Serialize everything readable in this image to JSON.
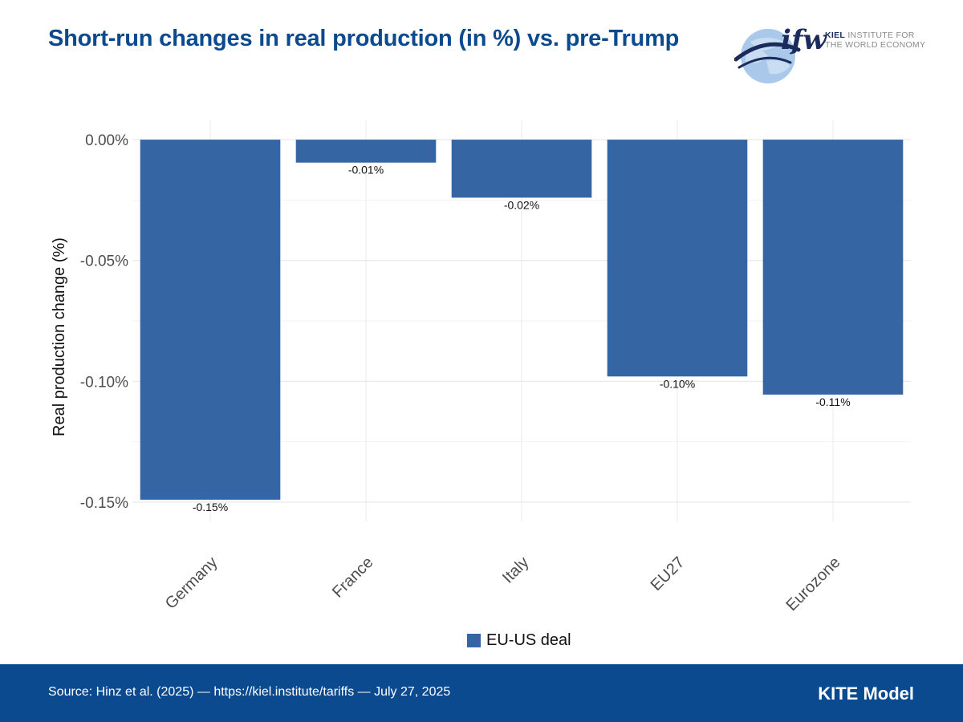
{
  "header": {
    "title": "Short-run changes in real production (in %) vs. pre-Trump"
  },
  "logo": {
    "mark": "ifw",
    "institute_line1": "KIEL",
    "institute_line1_rest": "INSTITUTE FOR",
    "institute_line2": "THE WORLD ECONOMY",
    "icon": "globe-icon"
  },
  "chart_data": {
    "type": "bar",
    "title": "Short-run changes in real production (in %) vs. pre-Trump",
    "categories": [
      "Germany",
      "France",
      "Italy",
      "EU27",
      "Eurozone"
    ],
    "series": [
      {
        "name": "EU-US deal",
        "values": [
          -0.149,
          -0.0095,
          -0.024,
          -0.098,
          -0.1055
        ],
        "labels": [
          "-0.15%",
          "-0.01%",
          "-0.02%",
          "-0.10%",
          "-0.11%"
        ],
        "color": "#3566a3"
      }
    ],
    "xlabel": "",
    "ylabel": "Real production change (%)",
    "ylim": [
      -0.158,
      0.008
    ],
    "yticks": [
      0.0,
      -0.05,
      -0.1,
      -0.15
    ],
    "ytick_labels": [
      "0.00%",
      "-0.05%",
      "-0.10%",
      "-0.15%"
    ],
    "grid": true,
    "legend": "bottom"
  },
  "legend": {
    "label": "EU-US deal"
  },
  "footer": {
    "source": "Source: Hinz et al. (2025) — https://kiel.institute/tariffs — July 27, 2025",
    "model": "KITE Model"
  },
  "colors": {
    "brand_blue": "#0b4a8f",
    "bar": "#3566a3",
    "logo_dark": "#1a2b5c"
  }
}
